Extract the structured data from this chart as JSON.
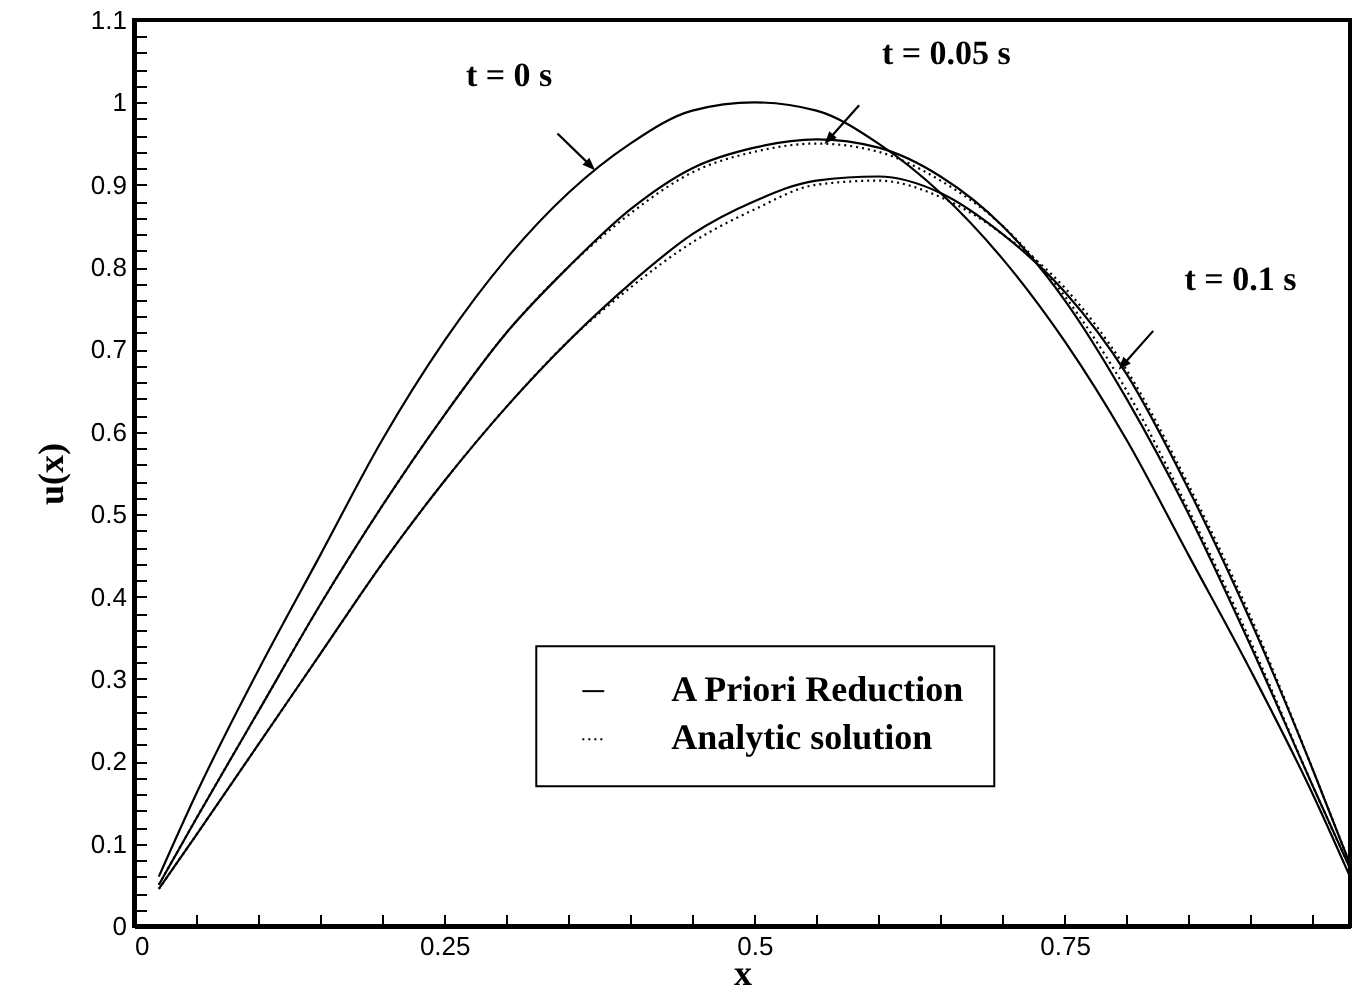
{
  "chart_data": {
    "type": "line",
    "xlabel": "x",
    "ylabel": "u(x)",
    "x": [
      0.02,
      0.05,
      0.1,
      0.15,
      0.2,
      0.25,
      0.3,
      0.35,
      0.4,
      0.45,
      0.5,
      0.55,
      0.6,
      0.65,
      0.7,
      0.75,
      0.8,
      0.85,
      0.9,
      0.95,
      0.98
    ],
    "series": [
      {
        "name": "A Priori Reduction",
        "color": "#000000",
        "line_style": "solid",
        "values": [
          0.06,
          0.16,
          0.31,
          0.45,
          0.59,
          0.71,
          0.81,
          0.89,
          0.95,
          0.99,
          1,
          0.99,
          0.95,
          0.89,
          0.81,
          0.71,
          0.59,
          0.45,
          0.31,
          0.16,
          0.06
        ]
      },
      {
        "color": "#000000",
        "line_style": "solid",
        "values": [
          0.05,
          0.13,
          0.26,
          0.39,
          0.51,
          0.62,
          0.72,
          0.8,
          0.87,
          0.92,
          0.945,
          0.955,
          0.945,
          0.91,
          0.85,
          0.76,
          0.64,
          0.5,
          0.34,
          0.17,
          0.07
        ]
      },
      {
        "color": "#000000",
        "line_style": "solid",
        "values": [
          0.045,
          0.11,
          0.22,
          0.33,
          0.44,
          0.54,
          0.63,
          0.71,
          0.78,
          0.84,
          0.88,
          0.905,
          0.91,
          0.89,
          0.84,
          0.77,
          0.67,
          0.53,
          0.37,
          0.19,
          0.075
        ]
      },
      {
        "name": "Analytic solution",
        "color": "#000000",
        "line_style": "dotted",
        "values": [
          0.05,
          0.13,
          0.26,
          0.39,
          0.51,
          0.62,
          0.72,
          0.8,
          0.865,
          0.915,
          0.94,
          0.95,
          0.94,
          0.905,
          0.85,
          0.765,
          0.65,
          0.505,
          0.345,
          0.17,
          0.07
        ]
      },
      {
        "color": "#000000",
        "line_style": "dotted",
        "values": [
          0.045,
          0.11,
          0.22,
          0.33,
          0.44,
          0.54,
          0.63,
          0.71,
          0.775,
          0.83,
          0.87,
          0.9,
          0.905,
          0.885,
          0.84,
          0.775,
          0.675,
          0.535,
          0.375,
          0.19,
          0.075
        ]
      }
    ],
    "xlim": [
      0,
      0.98
    ],
    "xticks": [
      0,
      {
        "value": 0.05,
        "label": null
      },
      {
        "value": 0.1,
        "label": null
      },
      {
        "value": 0.15,
        "label": null
      },
      {
        "value": 0.2,
        "label": null
      },
      0.25,
      {
        "value": 0.3,
        "label": null
      },
      {
        "value": 0.35,
        "label": null
      },
      {
        "value": 0.4,
        "label": null
      },
      {
        "value": 0.45,
        "label": null
      },
      0.5,
      {
        "value": 0.55,
        "label": null
      },
      {
        "value": 0.6,
        "label": null
      },
      {
        "value": 0.65,
        "label": null
      },
      {
        "value": 0.7,
        "label": null
      },
      0.75,
      {
        "value": 0.8,
        "label": null
      },
      {
        "value": 0.85,
        "label": null
      },
      {
        "value": 0.9,
        "label": null
      },
      {
        "value": 0.95,
        "label": null
      }
    ],
    "ylim": [
      0,
      1.1
    ],
    "yticks": [
      0,
      {
        "value": 0.02,
        "label": null
      },
      {
        "value": 0.04,
        "label": null
      },
      {
        "value": 0.06,
        "label": null
      },
      {
        "value": 0.08,
        "label": null
      },
      0.1,
      {
        "value": 0.12,
        "label": null
      },
      {
        "value": 0.14,
        "label": null
      },
      {
        "value": 0.16,
        "label": null
      },
      {
        "value": 0.18,
        "label": null
      },
      0.2,
      {
        "value": 0.22,
        "label": null
      },
      {
        "value": 0.24,
        "label": null
      },
      {
        "value": 0.26,
        "label": null
      },
      {
        "value": 0.28,
        "label": null
      },
      0.3,
      {
        "value": 0.32,
        "label": null
      },
      {
        "value": 0.34,
        "label": null
      },
      {
        "value": 0.36,
        "label": null
      },
      {
        "value": 0.38,
        "label": null
      },
      0.4,
      {
        "value": 0.42,
        "label": null
      },
      {
        "value": 0.44,
        "label": null
      },
      {
        "value": 0.46,
        "label": null
      },
      {
        "value": 0.48,
        "label": null
      },
      0.5,
      {
        "value": 0.52,
        "label": null
      },
      {
        "value": 0.54,
        "label": null
      },
      {
        "value": 0.56,
        "label": null
      },
      {
        "value": 0.58,
        "label": null
      },
      0.6,
      {
        "value": 0.62,
        "label": null
      },
      {
        "value": 0.64,
        "label": null
      },
      {
        "value": 0.66,
        "label": null
      },
      {
        "value": 0.68,
        "label": null
      },
      0.7,
      {
        "value": 0.72,
        "label": null
      },
      {
        "value": 0.74,
        "label": null
      },
      {
        "value": 0.76,
        "label": null
      },
      {
        "value": 0.78,
        "label": null
      },
      0.8,
      {
        "value": 0.82,
        "label": null
      },
      {
        "value": 0.84,
        "label": null
      },
      {
        "value": 0.86,
        "label": null
      },
      {
        "value": 0.88,
        "label": null
      },
      0.9,
      {
        "value": 0.92,
        "label": null
      },
      {
        "value": 0.94,
        "label": null
      },
      {
        "value": 0.96,
        "label": null
      },
      {
        "value": 0.98,
        "label": null
      },
      1,
      {
        "value": 1.02,
        "label": null
      },
      {
        "value": 1.04,
        "label": null
      },
      {
        "value": 1.06,
        "label": null
      },
      {
        "value": 1.08,
        "label": null
      },
      1.1
    ],
    "annotations": [
      {
        "text": "t = 0 s",
        "x": 0.37,
        "y": 0.92
      },
      {
        "text": "t = 0.05 s",
        "x": 0.558,
        "y": 0.952
      },
      {
        "text": "t = 0.1 s",
        "x": 0.795,
        "y": 0.678
      }
    ],
    "legend": "bottom",
    "grid": false,
    "marker": "none"
  }
}
